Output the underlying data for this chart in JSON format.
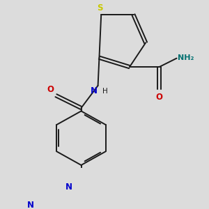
{
  "background_color": "#dcdcdc",
  "bond_color": "#1a1a1a",
  "sulfur_color": "#c8c800",
  "nitrogen_color": "#0000cc",
  "oxygen_color": "#cc0000",
  "nh2_color": "#007070",
  "figsize": [
    3.0,
    3.0
  ],
  "dpi": 100,
  "xlim": [
    0,
    10
  ],
  "ylim": [
    0,
    10
  ],
  "bond_lw": 1.4,
  "dbl_off": 0.12
}
